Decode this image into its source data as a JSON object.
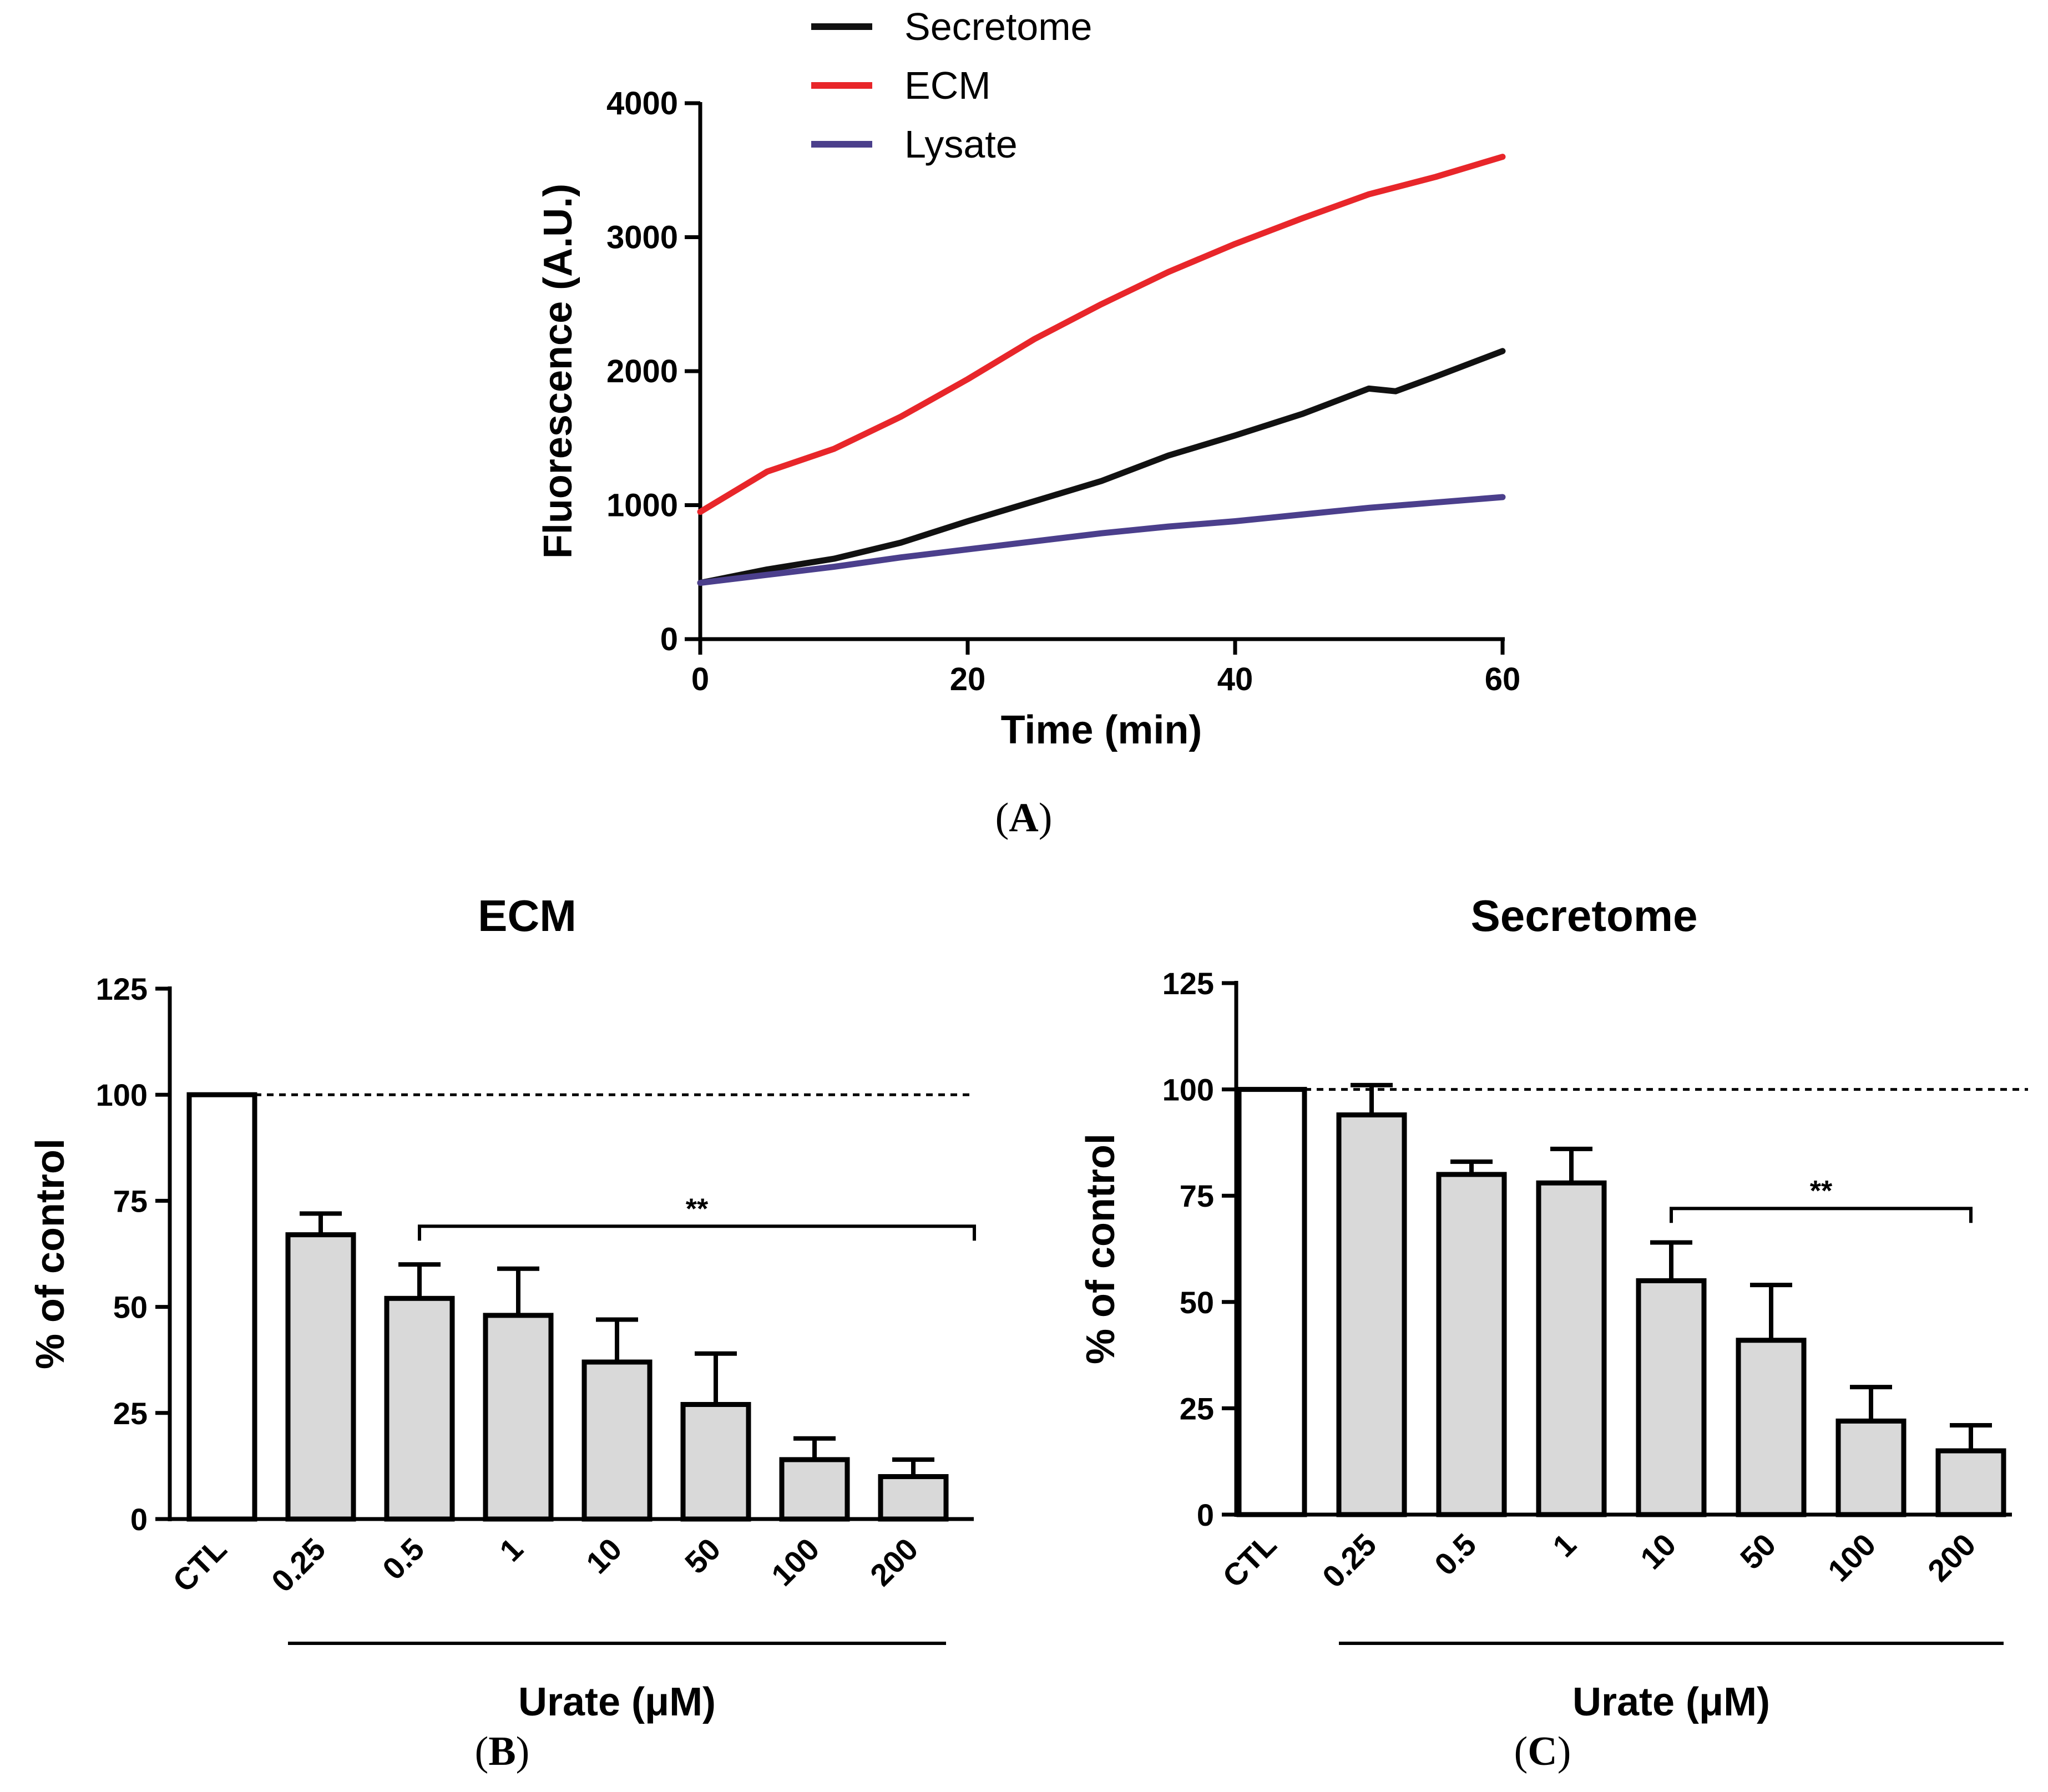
{
  "figure": {
    "caption_a": {
      "open": "(",
      "letter": "A",
      "close": ")"
    },
    "caption_b": {
      "open": "(",
      "letter": "B",
      "close": ")"
    },
    "caption_c": {
      "open": "(",
      "letter": "C",
      "close": ")"
    }
  },
  "colors": {
    "secretome": "#111111",
    "ecm": "#e8262a",
    "lysate": "#4b3f8c",
    "bar_fill": "#d9d9d9",
    "bar_ctl_fill": "#ffffff"
  },
  "chart_data": [
    {
      "id": "A",
      "type": "line",
      "xlabel": "Time (min)",
      "ylabel": "Fluorescence (A.U.)",
      "xlim": [
        0,
        60
      ],
      "ylim": [
        0,
        4000
      ],
      "xticks": [
        "0",
        "20",
        "40",
        "60"
      ],
      "yticks": [
        "0",
        "1000",
        "2000",
        "3000",
        "4000"
      ],
      "legend_position": "top",
      "series": [
        {
          "name": "Secretome",
          "color": "#111111",
          "x": [
            0,
            5,
            10,
            15,
            20,
            25,
            30,
            35,
            40,
            45,
            50,
            52,
            55,
            60
          ],
          "y": [
            420,
            520,
            600,
            720,
            880,
            1030,
            1180,
            1370,
            1520,
            1680,
            1870,
            1850,
            1960,
            2150
          ]
        },
        {
          "name": "ECM",
          "color": "#e8262a",
          "x": [
            0,
            5,
            10,
            15,
            20,
            25,
            30,
            35,
            40,
            45,
            50,
            55,
            60
          ],
          "y": [
            950,
            1250,
            1420,
            1660,
            1940,
            2240,
            2500,
            2740,
            2950,
            3140,
            3320,
            3450,
            3600
          ]
        },
        {
          "name": "Lysate",
          "color": "#4b3f8c",
          "x": [
            0,
            5,
            10,
            15,
            20,
            25,
            30,
            35,
            40,
            45,
            50,
            55,
            60
          ],
          "y": [
            420,
            480,
            540,
            610,
            670,
            730,
            790,
            840,
            880,
            930,
            980,
            1020,
            1060
          ]
        }
      ]
    },
    {
      "id": "B",
      "type": "bar",
      "title": "ECM",
      "ylabel": "% of control",
      "xlabel": "Urate (μM)",
      "ylim": [
        0,
        125
      ],
      "yticks": [
        "0",
        "25",
        "50",
        "75",
        "100",
        "125"
      ],
      "categories": [
        "CTL",
        "0.25",
        "0.5",
        "1",
        "10",
        "50",
        "100",
        "200"
      ],
      "values": [
        100,
        67,
        52,
        48,
        37,
        27,
        14,
        10
      ],
      "errors": [
        0,
        5,
        8,
        11,
        10,
        12,
        5,
        4
      ],
      "reference_line": 100,
      "significance": {
        "label": "**",
        "from_category": "0.5",
        "to_category": "200",
        "level": 69
      }
    },
    {
      "id": "C",
      "type": "bar",
      "title": "Secretome",
      "ylabel": "% of control",
      "xlabel": "Urate (μM)",
      "ylim": [
        0,
        125
      ],
      "yticks": [
        "0",
        "25",
        "50",
        "75",
        "100",
        "125"
      ],
      "categories": [
        "CTL",
        "0.25",
        "0.5",
        "1",
        "10",
        "50",
        "100",
        "200"
      ],
      "values": [
        100,
        94,
        80,
        78,
        55,
        41,
        22,
        15
      ],
      "errors": [
        0,
        7,
        3,
        8,
        9,
        13,
        8,
        6
      ],
      "reference_line": 100,
      "significance": {
        "label": "**",
        "from_category": "10",
        "to_category": "200",
        "level": 72
      }
    }
  ]
}
